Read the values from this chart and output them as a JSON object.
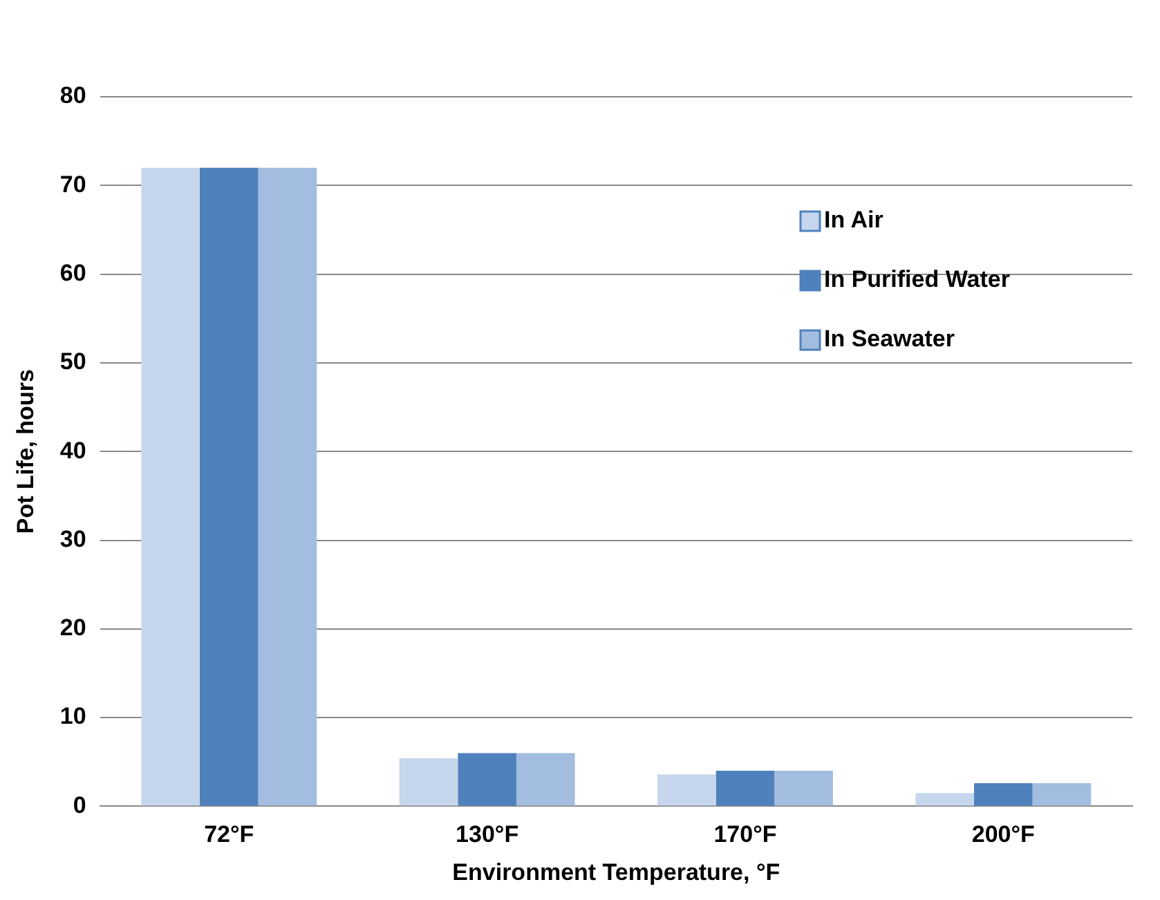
{
  "chart_data": {
    "type": "bar",
    "xlabel": "Environment Temperature, °F",
    "ylabel": "Pot Life, hours",
    "categories": [
      "72°F",
      "130°F",
      "170°F",
      "200°F"
    ],
    "series": [
      {
        "name": "In Air",
        "color": "#c6d6ec",
        "values": [
          72,
          5.4,
          3.6,
          1.5
        ]
      },
      {
        "name": "In Purified Water",
        "color": "#4f81bd",
        "values": [
          72,
          6,
          4,
          2.6
        ]
      },
      {
        "name": "In Seawater",
        "color": "#a3bde0",
        "values": [
          72,
          6,
          4,
          2.6
        ]
      }
    ],
    "ylim": [
      0,
      80
    ],
    "yticks": [
      0,
      10,
      20,
      30,
      40,
      50,
      60,
      70,
      80
    ],
    "grid": "y",
    "legend": "top right"
  }
}
